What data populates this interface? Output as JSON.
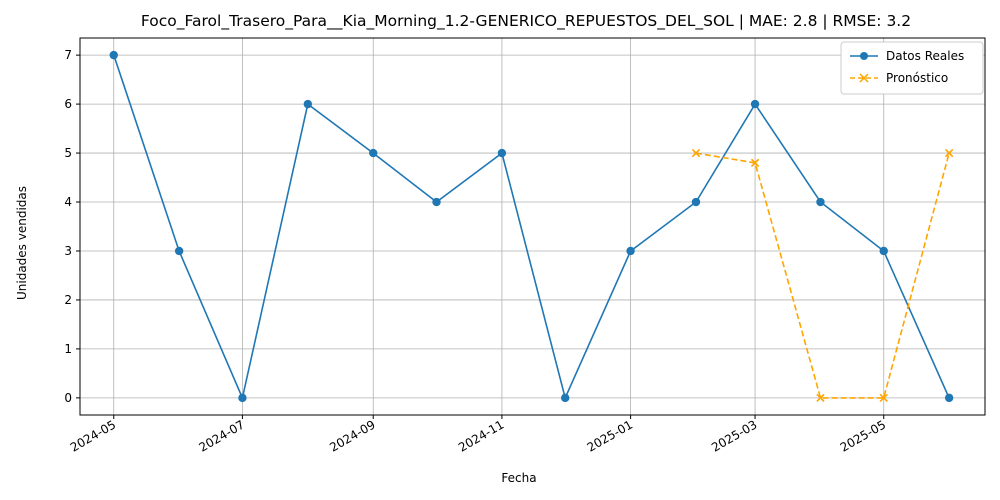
{
  "chart_data": {
    "type": "line",
    "title": "Foco_Farol_Trasero_Para__Kia_Morning_1.2-GENERICO_REPUESTOS_DEL_SOL | MAE: 2.8 | RMSE: 3.2",
    "xlabel": "Fecha",
    "ylabel": "Unidades vendidas",
    "x_range": [
      "2024-04-15",
      "2025-06-18"
    ],
    "ylim": [
      -0.35,
      7.35
    ],
    "grid": true,
    "legend_position": "top-right",
    "x_ticks": [
      {
        "date": "2024-05-01",
        "label": "2024-05"
      },
      {
        "date": "2024-07-01",
        "label": "2024-07"
      },
      {
        "date": "2024-09-01",
        "label": "2024-09"
      },
      {
        "date": "2024-11-01",
        "label": "2024-11"
      },
      {
        "date": "2025-01-01",
        "label": "2025-01"
      },
      {
        "date": "2025-03-01",
        "label": "2025-03"
      },
      {
        "date": "2025-05-01",
        "label": "2025-05"
      }
    ],
    "y_ticks": [
      0,
      1,
      2,
      3,
      4,
      5,
      6,
      7
    ],
    "series": [
      {
        "name": "Datos Reales",
        "color": "#1f77b4",
        "marker": "circle",
        "line_style": "solid",
        "points": [
          {
            "x": "2024-05-01",
            "y": 7
          },
          {
            "x": "2024-06-01",
            "y": 3
          },
          {
            "x": "2024-07-01",
            "y": 0
          },
          {
            "x": "2024-08-01",
            "y": 6
          },
          {
            "x": "2024-09-01",
            "y": 5
          },
          {
            "x": "2024-10-01",
            "y": 4
          },
          {
            "x": "2024-11-01",
            "y": 5
          },
          {
            "x": "2024-12-01",
            "y": 0
          },
          {
            "x": "2025-01-01",
            "y": 3
          },
          {
            "x": "2025-02-01",
            "y": 4
          },
          {
            "x": "2025-03-01",
            "y": 6
          },
          {
            "x": "2025-04-01",
            "y": 4
          },
          {
            "x": "2025-05-01",
            "y": 3
          },
          {
            "x": "2025-06-01",
            "y": 0
          }
        ]
      },
      {
        "name": "Pronóstico",
        "color": "#ffa500",
        "marker": "x",
        "line_style": "dashed",
        "points": [
          {
            "x": "2025-02-01",
            "y": 5
          },
          {
            "x": "2025-03-01",
            "y": 4.8
          },
          {
            "x": "2025-04-01",
            "y": 0
          },
          {
            "x": "2025-05-01",
            "y": 0
          },
          {
            "x": "2025-06-01",
            "y": 5
          }
        ]
      }
    ]
  }
}
